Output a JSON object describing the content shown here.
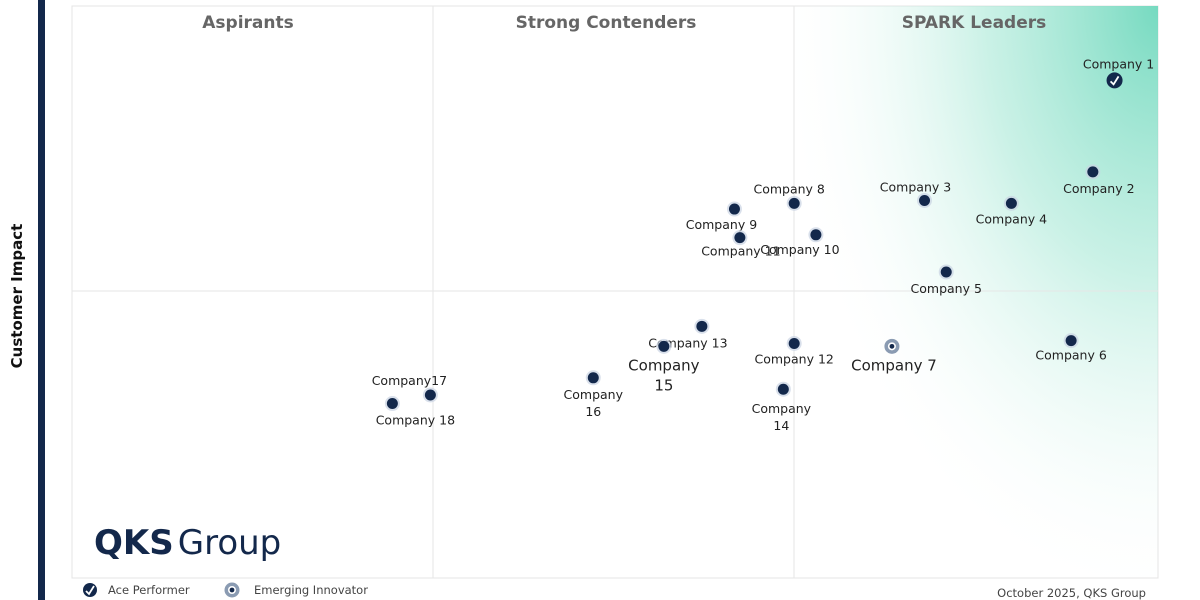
{
  "chart_data": {
    "type": "scatter",
    "ylabel": "Customer Impact",
    "xlabel": "",
    "xlim": [
      0,
      100
    ],
    "ylim": [
      0,
      100
    ],
    "quadrants": [
      {
        "label": "Aspirants"
      },
      {
        "label": "Strong Contenders"
      },
      {
        "label": "SPARK Leaders"
      }
    ],
    "points": [
      {
        "label": "Company 1",
        "x": 96,
        "y": 87,
        "marker": "ace"
      },
      {
        "label": "Company 2",
        "x": 94,
        "y": 71,
        "marker": "dot"
      },
      {
        "label": "Company 3",
        "x": 78.5,
        "y": 66,
        "marker": "dot"
      },
      {
        "label": "Company 4",
        "x": 86.5,
        "y": 65.5,
        "marker": "dot"
      },
      {
        "label": "Company 5",
        "x": 80.5,
        "y": 53.5,
        "marker": "dot"
      },
      {
        "label": "Company 6",
        "x": 92,
        "y": 41.5,
        "marker": "dot"
      },
      {
        "label": "Company 7",
        "x": 75.5,
        "y": 40.5,
        "marker": "emerging"
      },
      {
        "label": "Company 8",
        "x": 66.5,
        "y": 65.5,
        "marker": "dot"
      },
      {
        "label": "Company 9",
        "x": 61,
        "y": 64.5,
        "marker": "dot"
      },
      {
        "label": "Company 10",
        "x": 68.5,
        "y": 60,
        "marker": "dot"
      },
      {
        "label": "Company 11",
        "x": 61.5,
        "y": 59.5,
        "marker": "dot"
      },
      {
        "label": "Company 12",
        "x": 66.5,
        "y": 41,
        "marker": "dot"
      },
      {
        "label": "Company 13",
        "x": 58,
        "y": 44,
        "marker": "dot"
      },
      {
        "label": "Company 14",
        "x": 65.5,
        "y": 33,
        "marker": "dot"
      },
      {
        "label": "Company 15",
        "x": 54.5,
        "y": 40.5,
        "marker": "dot"
      },
      {
        "label": "Company 16",
        "x": 48,
        "y": 35,
        "marker": "dot"
      },
      {
        "label": "Company17",
        "x": 33,
        "y": 32,
        "marker": "dot"
      },
      {
        "label": "Company 18",
        "x": 29.5,
        "y": 30.5,
        "marker": "dot"
      }
    ],
    "legend": [
      {
        "label": "Ace Performer",
        "marker": "ace"
      },
      {
        "label": "Emerging Innovator",
        "marker": "emerging"
      }
    ],
    "footer": "October 2025, QKS Group",
    "logo": {
      "bold": "QKS",
      "light": "Group"
    },
    "colors": {
      "dot": "#13284b",
      "emerging": "#5a6f8c",
      "leader_fill": "#6fd8bd",
      "frame": "#13284b"
    }
  }
}
